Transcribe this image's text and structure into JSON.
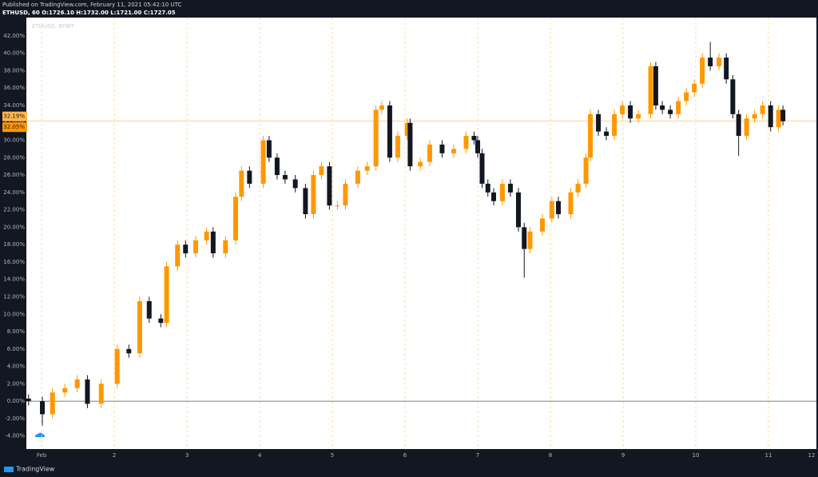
{
  "header": {
    "published": "Published on TradingView.com, February 11, 2021 05:42:10 UTC",
    "symbol": "ETHUSD, 60  O:1726.10 H:1732.00 L:1721.00 C:1727.05"
  },
  "footer": {
    "brand": "TradingView"
  },
  "chart_data": {
    "type": "candlestick",
    "watermark": "ETHUSD, BYBIT",
    "up_color": "#ff9800",
    "down_color": "#131722",
    "x": [
      -0.18,
      0.01,
      0.15,
      0.32,
      0.49,
      0.63,
      0.82,
      1.04,
      1.2,
      1.35,
      1.48,
      1.64,
      1.72,
      1.87,
      1.98,
      2.12,
      2.27,
      2.36,
      2.53,
      2.67,
      2.75,
      2.86,
      3.05,
      3.13,
      3.24,
      3.35,
      3.49,
      3.63,
      3.74,
      3.85,
      3.96,
      4.07,
      4.18,
      4.35,
      4.48,
      4.6,
      4.68,
      4.79,
      4.9,
      5.03,
      5.07,
      5.21,
      5.34,
      5.51,
      5.67,
      5.84,
      5.95,
      6.0,
      6.06,
      6.14,
      6.22,
      6.34,
      6.45,
      6.56,
      6.64,
      6.72,
      6.89,
      7.02,
      7.11,
      7.28,
      7.38,
      7.49,
      7.55,
      7.66,
      7.77,
      7.88,
      7.99,
      8.1,
      8.21,
      8.38,
      8.45,
      8.54,
      8.65,
      8.76,
      8.87,
      8.98,
      9.09,
      9.2,
      9.32,
      9.42,
      9.51,
      9.59,
      9.7,
      9.81,
      9.92,
      10.03,
      10.14,
      10.2
    ],
    "open": [
      0.3,
      0,
      -1.5,
      1.0,
      1.5,
      2.5,
      -0.3,
      2.0,
      6.0,
      5.5,
      11.5,
      9.5,
      9.0,
      15.5,
      18.0,
      17.0,
      18.5,
      19.5,
      17.0,
      18.5,
      23.5,
      26.5,
      25.0,
      30.0,
      28.0,
      26.0,
      25.5,
      24.5,
      21.5,
      26.0,
      27.0,
      22.5,
      22.5,
      25.0,
      26.5,
      27.0,
      33.5,
      34.0,
      28.0,
      30.5,
      32.0,
      27.0,
      27.5,
      29.5,
      28.5,
      29.0,
      30.5,
      30.0,
      28.5,
      25.0,
      24.0,
      23.0,
      25.0,
      24.0,
      20.0,
      17.5,
      19.5,
      21.0,
      23.0,
      21.5,
      24.0,
      25.0,
      28.0,
      33.0,
      31.0,
      30.5,
      33.0,
      34.0,
      32.5,
      33.0,
      38.5,
      34.0,
      33.5,
      33.0,
      34.5,
      35.5,
      36.5,
      39.5,
      38.5,
      39.5,
      37.0,
      33.0,
      30.5,
      32.5,
      33.0,
      34.0,
      31.5,
      33.5
    ],
    "high": [
      0.8,
      0.5,
      1.5,
      2.0,
      3.0,
      3.0,
      2.5,
      6.5,
      6.5,
      12.0,
      12.0,
      10.0,
      16.0,
      18.5,
      18.5,
      19.0,
      20.0,
      20.0,
      19.0,
      24.0,
      27.0,
      27.0,
      30.5,
      30.5,
      28.5,
      26.5,
      26.0,
      25.0,
      26.5,
      27.5,
      27.5,
      23.0,
      25.5,
      27.0,
      27.5,
      34.0,
      34.5,
      34.5,
      31.0,
      32.5,
      32.5,
      28.0,
      30.0,
      30.0,
      29.5,
      31.0,
      31.0,
      30.5,
      29.0,
      25.5,
      24.5,
      25.5,
      25.5,
      24.5,
      20.5,
      20.0,
      21.5,
      23.5,
      23.5,
      24.5,
      25.5,
      28.5,
      33.5,
      33.5,
      31.5,
      33.5,
      34.5,
      34.5,
      33.5,
      39.0,
      39.0,
      34.5,
      34.0,
      35.0,
      36.0,
      37.0,
      40.0,
      41.3,
      40.0,
      40.0,
      37.5,
      33.5,
      33.0,
      33.5,
      34.5,
      34.5,
      34.0,
      34.0
    ],
    "low": [
      -0.5,
      -2.8,
      -2.0,
      0.5,
      1.0,
      -0.8,
      -0.8,
      1.5,
      5.0,
      5.0,
      9.0,
      8.5,
      8.5,
      15.0,
      16.5,
      16.5,
      18.0,
      16.5,
      16.5,
      18.0,
      23.0,
      24.5,
      24.5,
      27.5,
      25.5,
      25.0,
      24.0,
      21.0,
      21.0,
      25.5,
      22.0,
      22.0,
      22.0,
      24.5,
      26.0,
      26.5,
      33.0,
      27.5,
      27.5,
      30.0,
      26.5,
      26.5,
      27.0,
      28.0,
      28.0,
      28.5,
      29.5,
      28.0,
      24.5,
      23.5,
      22.5,
      22.5,
      23.5,
      19.5,
      14.2,
      17.0,
      19.0,
      20.5,
      21.0,
      21.0,
      23.5,
      24.5,
      27.5,
      30.5,
      30.0,
      30.0,
      32.5,
      32.0,
      32.0,
      32.5,
      33.5,
      33.0,
      32.5,
      32.5,
      34.0,
      35.0,
      36.0,
      38.0,
      38.0,
      36.5,
      32.5,
      28.2,
      30.0,
      32.0,
      32.5,
      31.0,
      31.0,
      31.69
    ],
    "close": [
      0,
      -1.5,
      1.0,
      1.5,
      2.5,
      -0.3,
      2.0,
      6.0,
      5.5,
      11.5,
      9.5,
      9.0,
      15.5,
      18.0,
      17.0,
      18.5,
      19.5,
      17.0,
      18.5,
      23.5,
      26.5,
      25.0,
      30.0,
      28.0,
      26.0,
      25.5,
      24.5,
      21.5,
      26.0,
      27.0,
      22.5,
      22.5,
      25.0,
      26.5,
      27.0,
      33.5,
      34.0,
      28.0,
      30.5,
      32.0,
      27.0,
      27.5,
      29.5,
      28.5,
      29.0,
      30.5,
      30.0,
      28.5,
      25.0,
      24.0,
      23.0,
      25.0,
      24.0,
      20.0,
      17.5,
      19.5,
      21.0,
      23.0,
      21.5,
      24.0,
      25.0,
      28.0,
      33.0,
      31.0,
      30.5,
      33.0,
      34.0,
      32.5,
      33.0,
      38.5,
      34.0,
      33.5,
      33.0,
      34.5,
      35.5,
      36.5,
      39.5,
      38.5,
      39.5,
      37.0,
      33.0,
      30.5,
      32.5,
      33.0,
      34.0,
      31.5,
      33.5,
      32.19
    ],
    "xlim": [
      -0.21,
      10.66
    ],
    "ylim": [
      -5.5,
      44.1
    ],
    "xticks": [
      {
        "value": 0,
        "label": "Feb"
      },
      1,
      {
        "value": 1,
        "label": "2"
      },
      {
        "value": 2,
        "label": "3"
      },
      {
        "value": 3,
        "label": "4"
      },
      {
        "value": 4,
        "label": "5"
      },
      {
        "value": 5,
        "label": "6"
      },
      {
        "value": 6,
        "label": "7"
      },
      {
        "value": 7,
        "label": "8"
      },
      {
        "value": 8,
        "label": "9"
      },
      {
        "value": 9,
        "label": "10"
      },
      {
        "value": 10,
        "label": "11"
      },
      {
        "value": 11,
        "label": "12"
      }
    ],
    "yticks": [
      {
        "value": -4,
        "label": "-4.00%"
      },
      {
        "value": -2,
        "label": "-2.00%"
      },
      {
        "value": 0,
        "label": "0.00%"
      },
      {
        "value": 2,
        "label": "2.00%"
      },
      {
        "value": 4,
        "label": "4.00%"
      },
      {
        "value": 6,
        "label": "6.00%"
      },
      {
        "value": 8,
        "label": "8.00%"
      },
      {
        "value": 10,
        "label": "10.00%"
      },
      {
        "value": 12,
        "label": "12.00%"
      },
      {
        "value": 14,
        "label": "14.00%"
      },
      {
        "value": 16,
        "label": "16.00%"
      },
      {
        "value": 18,
        "label": "18.00%"
      },
      {
        "value": 20,
        "label": "20.00%"
      },
      {
        "value": 22,
        "label": "22.00%"
      },
      {
        "value": 24,
        "label": "24.00%"
      },
      {
        "value": 26,
        "label": "26.00%"
      },
      {
        "value": 28,
        "label": "28.00%"
      },
      {
        "value": 30,
        "label": "30.00%"
      },
      {
        "value": 32,
        "label": "32.00%"
      },
      {
        "value": 34,
        "label": "34.00%"
      },
      {
        "value": 36,
        "label": "36.00%"
      },
      {
        "value": 38,
        "label": "38.00%"
      },
      {
        "value": 40,
        "label": "40.00%"
      },
      {
        "value": 42,
        "label": "42.00%"
      }
    ],
    "baseline": 0,
    "price_labels": [
      {
        "value": 32.19,
        "label": "32.19%",
        "color": "#ffb74d"
      },
      {
        "value": 32.05,
        "label": "32.05%",
        "color": "#ff9800"
      }
    ]
  }
}
